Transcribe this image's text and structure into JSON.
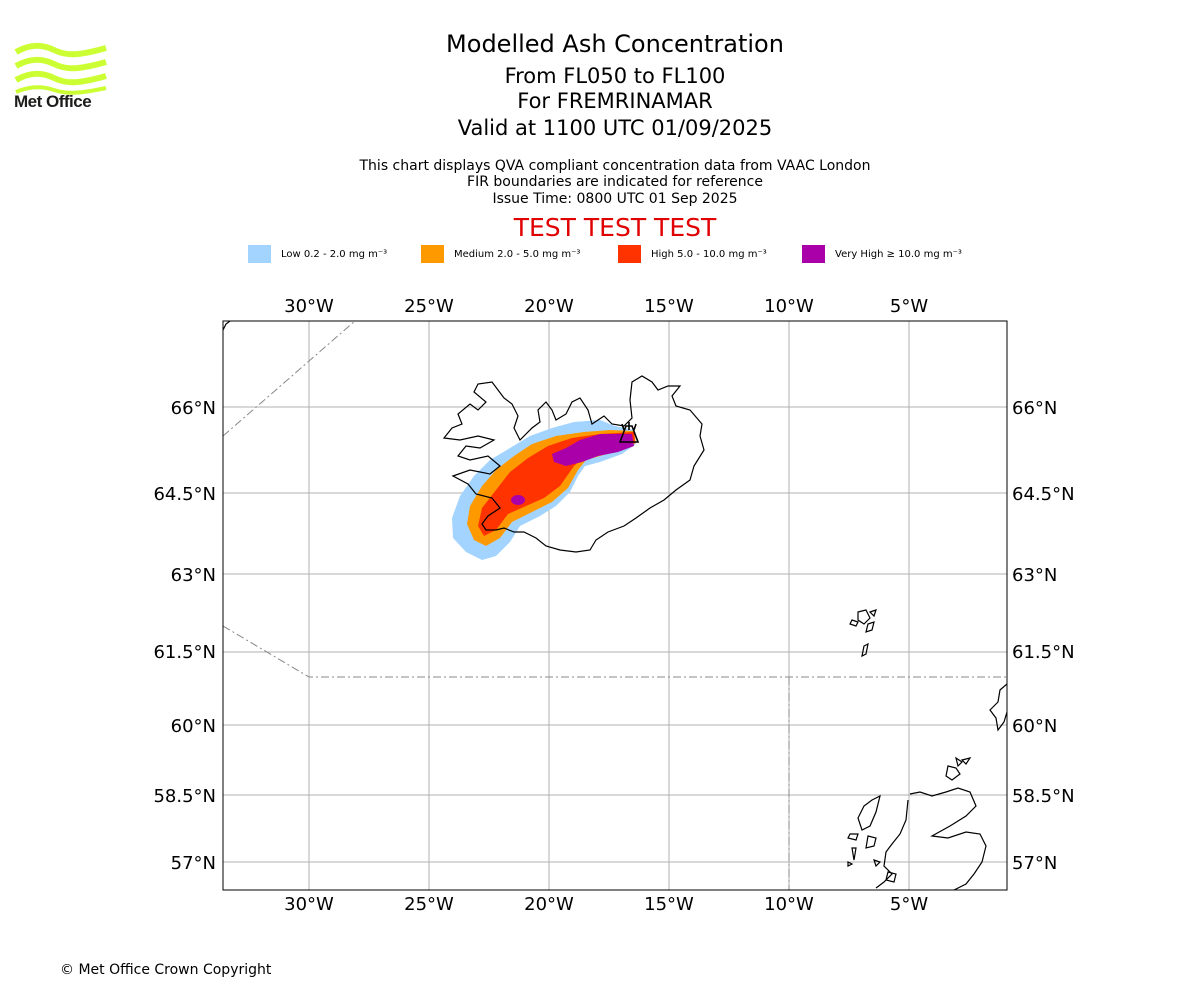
{
  "logo": {
    "text": "Met Office",
    "icon": "met-office-wave-logo-icon",
    "color": "#ccff33"
  },
  "header": {
    "title": "Modelled Ash Concentration",
    "levels": "From FL050 to FL100",
    "region": "For FREMRINAMAR",
    "valid": "Valid at 1100 UTC 01/09/2025",
    "info_1": "This chart displays QVA compliant concentration data from VAAC London",
    "info_2": "FIR boundaries are indicated for reference",
    "issue": "Issue Time: 0800 UTC 01 Sep 2025",
    "test_banner": "TEST TEST TEST"
  },
  "legend": [
    {
      "label": "Low 0.2 - 2.0 mg m⁻³",
      "color": "#a3d4ff"
    },
    {
      "label": "Medium 2.0 - 5.0 mg m⁻³",
      "color": "#ff9900"
    },
    {
      "label": "High 5.0 - 10.0 mg m⁻³",
      "color": "#ff3300"
    },
    {
      "label": "Very High ≥ 10.0 mg m⁻³",
      "color": "#aa00aa"
    }
  ],
  "map": {
    "lon_ticks": [
      "30°W",
      "25°W",
      "20°W",
      "15°W",
      "10°W",
      "5°W"
    ],
    "lat_ticks": [
      "66°N",
      "64.5°N",
      "63°N",
      "61.5°N",
      "60°N",
      "58.5°N",
      "57°N"
    ],
    "lon_range": [
      "33.6°W",
      "0.9°W"
    ],
    "lat_range": [
      "56.5°N",
      "66.8°N"
    ],
    "gridlines": true,
    "volcano_marker": "volcano-icon",
    "fir_boundary_style": "dash-dot grey"
  },
  "footer": {
    "copyright": "© Met Office Crown Copyright"
  }
}
